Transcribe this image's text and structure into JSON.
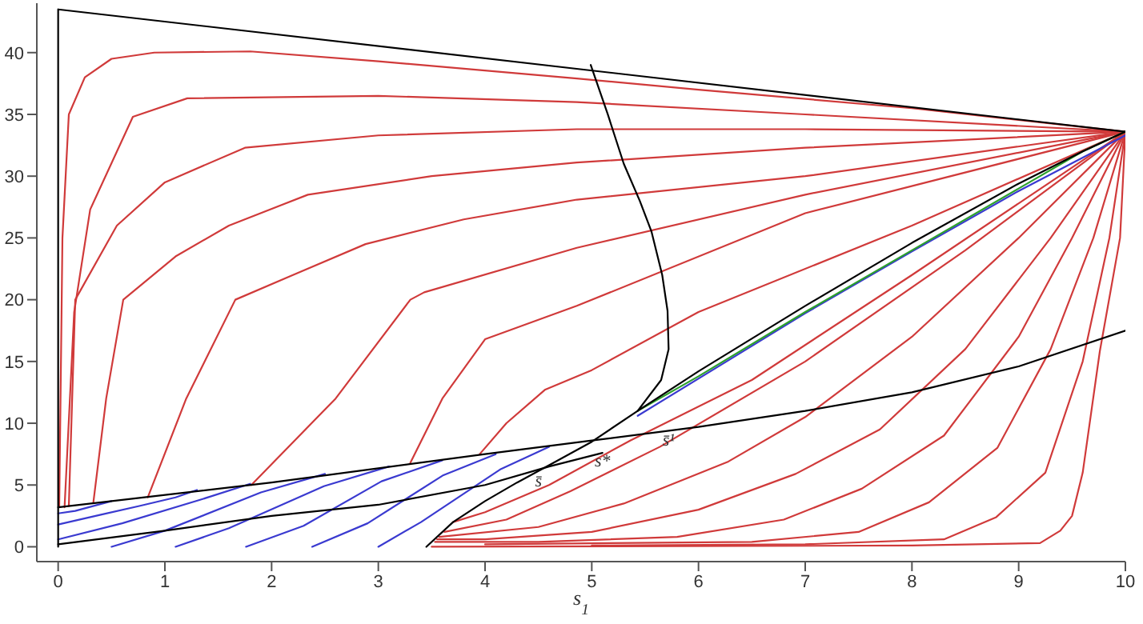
{
  "chart_data": {
    "type": "line",
    "xlabel": "s$_{1}$",
    "xlim": [
      -0.2,
      10
    ],
    "ylim": [
      -1.2,
      44
    ],
    "xticks": [
      0,
      1,
      2,
      3,
      4,
      5,
      6,
      7,
      8,
      9,
      10
    ],
    "yticks": [
      0,
      5,
      10,
      15,
      20,
      25,
      30,
      35,
      40
    ],
    "grid": false,
    "marker": "none",
    "annotations": [
      {
        "text": "s̄",
        "x": 4.5,
        "y": 5.4
      },
      {
        "text": "s*",
        "x": 5.1,
        "y": 7.0
      },
      {
        "text": "s̄¹",
        "x": 5.72,
        "y": 8.7
      }
    ],
    "series": [
      {
        "color": "#d03a3a",
        "x": [
          10,
          8,
          6,
          4.86,
          3,
          1.8,
          0.9,
          0.5,
          0.25,
          0.1,
          0.04,
          0.01
        ],
        "values": [
          33.6,
          35.5,
          37,
          37.9,
          39.3,
          40.1,
          40,
          39.5,
          38,
          35,
          25,
          3.2
        ]
      },
      {
        "color": "#d03a3a",
        "x": [
          10,
          7,
          4.86,
          3,
          1.21,
          0.7,
          0.3,
          0.15,
          0.06
        ],
        "values": [
          33.6,
          35,
          36,
          36.5,
          36.3,
          34.8,
          27.3,
          19,
          3.2
        ]
      },
      {
        "color": "#d03a3a",
        "x": [
          10,
          7,
          4.86,
          3,
          1.75,
          1.0,
          0.55,
          0.16,
          0.1
        ],
        "values": [
          33.6,
          33.8,
          33.8,
          33.3,
          32.3,
          29.5,
          26,
          20,
          3.3
        ]
      },
      {
        "color": "#d03a3a",
        "x": [
          10,
          7,
          4.86,
          3.5,
          2.34,
          1.6,
          1.1,
          0.61,
          0.45,
          0.33
        ],
        "values": [
          33.6,
          32.3,
          31.1,
          30,
          28.5,
          26,
          23.5,
          20,
          12,
          3.6
        ]
      },
      {
        "color": "#d03a3a",
        "x": [
          10,
          7,
          4.86,
          3.8,
          2.88,
          2.2,
          1.66,
          1.2,
          0.84
        ],
        "values": [
          33.6,
          30,
          28.1,
          26.5,
          24.5,
          22,
          20,
          12,
          4.0
        ]
      },
      {
        "color": "#d03a3a",
        "x": [
          10,
          7,
          4.86,
          3.43,
          3.3,
          2.6,
          1.81
        ],
        "values": [
          33.6,
          28.5,
          24.2,
          20.6,
          20,
          12,
          5.0
        ]
      },
      {
        "color": "#d03a3a",
        "x": [
          10,
          7,
          4.86,
          4.0,
          3.6,
          3.3
        ],
        "values": [
          33.6,
          27,
          19.5,
          16.8,
          12,
          6.8
        ]
      },
      {
        "color": "#d03a3a",
        "x": [
          10,
          8,
          6,
          5,
          4.56,
          4.2,
          3.95
        ],
        "values": [
          33.6,
          26,
          19,
          14.3,
          12.7,
          10,
          7.5
        ]
      },
      {
        "color": "#d03a3a",
        "x": [
          10,
          8,
          6.5,
          5.36,
          4.6,
          4,
          3.7
        ],
        "values": [
          33.6,
          22,
          13.5,
          8.6,
          5.0,
          2.8,
          2.0
        ]
      },
      {
        "color": "#d03a3a",
        "x": [
          10,
          8.5,
          7,
          5.64,
          4.8,
          4.2,
          3.62
        ],
        "values": [
          33.6,
          24,
          15,
          8.1,
          4.5,
          2.2,
          1.2
        ]
      },
      {
        "color": "#d03a3a",
        "x": [
          10,
          9,
          8,
          7,
          6.28,
          5.3,
          4.5,
          3.57
        ],
        "values": [
          33.6,
          25,
          17,
          10.5,
          6.9,
          3.5,
          1.6,
          0.8
        ]
      },
      {
        "color": "#d03a3a",
        "x": [
          10,
          9.3,
          8.5,
          7.7,
          6.91,
          6,
          5,
          4,
          3.55
        ],
        "values": [
          33.6,
          25,
          16,
          9.5,
          5.9,
          3,
          1.2,
          0.6,
          0.6
        ]
      },
      {
        "color": "#d03a3a",
        "x": [
          10,
          9.5,
          9,
          8.3,
          7.53,
          6.8,
          5.8,
          4.5,
          3.53
        ],
        "values": [
          33.6,
          25,
          17,
          9,
          4.7,
          2.2,
          0.8,
          0.4,
          0.4
        ]
      },
      {
        "color": "#d03a3a",
        "x": [
          10,
          9.7,
          9.3,
          8.8,
          8.16,
          7.5,
          6.5,
          4.0
        ],
        "values": [
          33.6,
          25,
          16,
          8,
          3.6,
          1.2,
          0.4,
          0.2
        ]
      },
      {
        "color": "#d03a3a",
        "x": [
          10,
          9.85,
          9.6,
          9.25,
          8.79,
          8.3,
          7,
          5.0
        ],
        "values": [
          33.6,
          25,
          15,
          6,
          2.4,
          0.6,
          0.2,
          0.1
        ]
      },
      {
        "color": "#d03a3a",
        "x": [
          10,
          9.95,
          9.76,
          9.6,
          9.5,
          9.39,
          9.2,
          8,
          3.5
        ],
        "values": [
          33.6,
          25,
          15.8,
          6,
          2.5,
          1.3,
          0.3,
          0.1,
          0
        ]
      },
      {
        "color": "#3a3ad0",
        "x": [
          0,
          0.16,
          0.5
        ],
        "values": [
          2.7,
          2.9,
          3.7
        ]
      },
      {
        "color": "#3a3ad0",
        "x": [
          0,
          0.4,
          0.76,
          1.1,
          1.3
        ],
        "values": [
          1.8,
          2.6,
          3.3,
          4.0,
          4.6
        ]
      },
      {
        "color": "#3a3ad0",
        "x": [
          0,
          0.6,
          1.33,
          1.8
        ],
        "values": [
          0.6,
          1.9,
          3.8,
          5.1
        ]
      },
      {
        "color": "#3a3ad0",
        "x": [
          0.5,
          1.0,
          1.9,
          2.5
        ],
        "values": [
          0,
          1.3,
          4.4,
          5.9
        ]
      },
      {
        "color": "#3a3ad0",
        "x": [
          1.1,
          1.6,
          2.49,
          3.1
        ],
        "values": [
          0,
          1.5,
          4.9,
          6.5
        ]
      },
      {
        "color": "#3a3ad0",
        "x": [
          1.76,
          2.3,
          3.03,
          3.6
        ],
        "values": [
          0,
          1.7,
          5.3,
          7.0
        ]
      },
      {
        "color": "#3a3ad0",
        "x": [
          2.38,
          2.9,
          3.61,
          4.1
        ],
        "values": [
          0,
          1.9,
          5.8,
          7.5
        ]
      },
      {
        "color": "#3a3ad0",
        "x": [
          3.0,
          3.4,
          4.15,
          4.6
        ],
        "values": [
          0,
          2.0,
          6.3,
          8.1
        ]
      },
      {
        "color": "#3a3ad0",
        "x": [
          5.43,
          7,
          8,
          9,
          10
        ],
        "values": [
          10.6,
          18.9,
          23.9,
          28.8,
          33.3
        ]
      },
      {
        "color": "#2ca02c",
        "x": [
          5.43,
          6,
          7,
          8,
          9,
          9.6,
          10
        ],
        "values": [
          11,
          13.8,
          19,
          24,
          29,
          32,
          33.6
        ]
      },
      {
        "color": "#000000",
        "x": [
          0,
          0,
          10
        ],
        "values": [
          0,
          43.5,
          33.6
        ]
      },
      {
        "color": "#000000",
        "x": [
          4.99,
          5.15,
          5.3,
          5.45,
          5.56,
          5.66,
          5.71,
          5.72,
          5.65,
          5.43
        ],
        "values": [
          39,
          35,
          31,
          28,
          25.5,
          22,
          19.1,
          16,
          13.5,
          11
        ]
      },
      {
        "color": "#000000",
        "x": [
          0,
          2,
          4,
          5,
          6,
          7,
          8,
          9,
          10
        ],
        "values": [
          3.2,
          5.2,
          7.5,
          8.6,
          9.7,
          11,
          12.5,
          14.6,
          17.5
        ]
      },
      {
        "color": "#000000",
        "x": [
          0,
          1,
          2,
          3,
          4,
          4.6,
          5.1
        ],
        "values": [
          0.2,
          1.3,
          2.5,
          3.4,
          5,
          6.5,
          7.6
        ]
      },
      {
        "color": "#000000",
        "x": [
          3.45,
          3.7,
          4.0,
          4.3,
          4.6,
          5.0,
          5.43,
          6,
          7,
          8,
          9,
          9.6,
          10
        ],
        "values": [
          0,
          2,
          3.7,
          5.2,
          6.6,
          8.5,
          11,
          14.2,
          19.5,
          24.6,
          29.4,
          32,
          33.6
        ]
      }
    ]
  }
}
